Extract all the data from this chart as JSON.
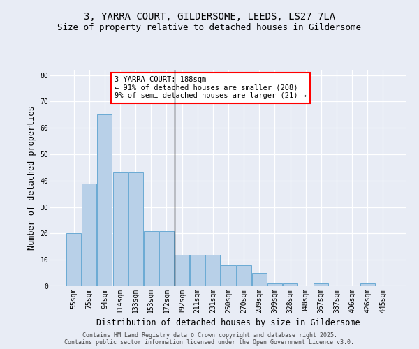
{
  "title": "3, YARRA COURT, GILDERSOME, LEEDS, LS27 7LA",
  "subtitle": "Size of property relative to detached houses in Gildersome",
  "xlabel": "Distribution of detached houses by size in Gildersome",
  "ylabel": "Number of detached properties",
  "categories": [
    "55sqm",
    "75sqm",
    "94sqm",
    "114sqm",
    "133sqm",
    "153sqm",
    "172sqm",
    "192sqm",
    "211sqm",
    "231sqm",
    "250sqm",
    "270sqm",
    "289sqm",
    "309sqm",
    "328sqm",
    "348sqm",
    "367sqm",
    "387sqm",
    "406sqm",
    "426sqm",
    "445sqm"
  ],
  "values": [
    20,
    39,
    65,
    43,
    43,
    21,
    21,
    12,
    12,
    12,
    8,
    8,
    5,
    1,
    1,
    0,
    1,
    0,
    0,
    1,
    0
  ],
  "bar_color": "#b8d0e8",
  "bar_edge_color": "#6aaad4",
  "background_color": "#e8ecf5",
  "property_line_index": 7,
  "annotation_title": "3 YARRA COURT: 188sqm",
  "annotation_line1": "← 91% of detached houses are smaller (208)",
  "annotation_line2": "9% of semi-detached houses are larger (21) →",
  "ylim": [
    0,
    82
  ],
  "yticks": [
    0,
    10,
    20,
    30,
    40,
    50,
    60,
    70,
    80
  ],
  "footer1": "Contains HM Land Registry data © Crown copyright and database right 2025.",
  "footer2": "Contains public sector information licensed under the Open Government Licence v3.0.",
  "title_fontsize": 10,
  "subtitle_fontsize": 9,
  "ylabel_fontsize": 8.5,
  "xlabel_fontsize": 8.5,
  "tick_fontsize": 7,
  "annot_fontsize": 7.5,
  "footer_fontsize": 6
}
